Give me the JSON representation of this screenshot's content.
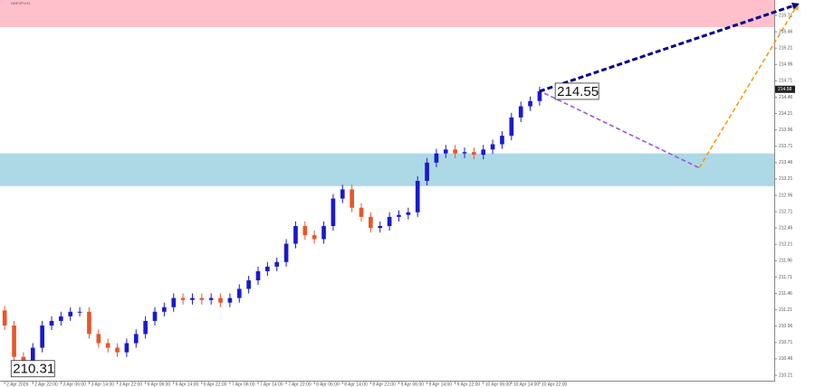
{
  "chart_data": {
    "type": "candlestick",
    "symbol_info": "GBPJPY,H1",
    "ylim": [
      210.03,
      215.945
    ],
    "yticks": [
      210.21,
      210.46,
      210.71,
      210.96,
      211.21,
      211.46,
      211.71,
      211.96,
      212.21,
      212.46,
      212.71,
      212.96,
      213.21,
      213.46,
      213.71,
      213.96,
      214.21,
      214.46,
      214.71,
      214.96,
      215.21,
      215.46,
      215.71
    ],
    "xlim": [
      -0.5,
      82
    ],
    "xticks": [
      {
        "value": 0,
        "label": "2 Apr 2026"
      },
      {
        "value": 3,
        "label": "2 Apr 22:00"
      },
      {
        "value": 6,
        "label": "3 Apr 06:00"
      },
      {
        "value": 9,
        "label": "3 Apr 14:00"
      },
      {
        "value": 12,
        "label": "3 Apr 22:00"
      },
      {
        "value": 15,
        "label": "6 Apr 06:00"
      },
      {
        "value": 18,
        "label": "6 Apr 14:00"
      },
      {
        "value": 21,
        "label": "6 Apr 22:00"
      },
      {
        "value": 24,
        "label": "7 Apr 06:00"
      },
      {
        "value": 27,
        "label": "7 Apr 14:00"
      },
      {
        "value": 30,
        "label": "7 Apr 22:00"
      },
      {
        "value": 33,
        "label": "8 Apr 06:00"
      },
      {
        "value": 36,
        "label": "8 Apr 14:00"
      },
      {
        "value": 39,
        "label": "8 Apr 22:00"
      },
      {
        "value": 42,
        "label": "9 Apr 06:00"
      },
      {
        "value": 45,
        "label": "9 Apr 14:00"
      },
      {
        "value": 48,
        "label": "9 Apr 22:00"
      },
      {
        "value": 51,
        "label": "10 Apr 06:00"
      },
      {
        "value": 54,
        "label": "10 Apr 14:00"
      },
      {
        "value": 57,
        "label": "10 Apr 22:00"
      }
    ],
    "up_color": "#1a1acd",
    "down_color": "#e8552a",
    "x": [
      0,
      1,
      2,
      3,
      4,
      5,
      6,
      7,
      8,
      9,
      10,
      11,
      12,
      13,
      14,
      15,
      16,
      17,
      18,
      19,
      20,
      21,
      22,
      23,
      24,
      25,
      26,
      27,
      28,
      29,
      30,
      31,
      32,
      33,
      34,
      35,
      36,
      37,
      38,
      39,
      40,
      41,
      42,
      43,
      44,
      45,
      46,
      47,
      48,
      49,
      50,
      51,
      52,
      53,
      54,
      55,
      56,
      57
    ],
    "open": [
      211.2,
      210.97,
      210.49,
      210.35,
      210.63,
      210.97,
      211.04,
      211.11,
      211.18,
      211.18,
      210.84,
      210.7,
      210.63,
      210.56,
      210.7,
      210.84,
      211.04,
      211.18,
      211.25,
      211.39,
      211.36,
      211.39,
      211.36,
      211.39,
      211.32,
      211.39,
      211.53,
      211.66,
      211.8,
      211.87,
      211.94,
      212.22,
      212.49,
      212.35,
      212.29,
      212.49,
      212.91,
      213.05,
      212.77,
      212.63,
      212.46,
      212.49,
      212.63,
      212.66,
      212.7,
      213.18,
      213.46,
      213.6,
      213.66,
      213.6,
      213.62,
      213.58,
      213.66,
      213.74,
      213.87,
      214.15,
      214.32,
      214.4
    ],
    "high": [
      211.27,
      211.04,
      210.56,
      210.7,
      211.04,
      211.11,
      211.18,
      211.25,
      211.25,
      211.25,
      210.91,
      210.77,
      210.7,
      210.77,
      210.91,
      211.11,
      211.25,
      211.32,
      211.46,
      211.46,
      211.46,
      211.46,
      211.46,
      211.46,
      211.46,
      211.6,
      211.73,
      211.87,
      211.94,
      212.01,
      212.29,
      212.56,
      212.56,
      212.42,
      212.56,
      212.98,
      213.12,
      213.12,
      212.84,
      212.7,
      212.56,
      212.7,
      212.73,
      212.77,
      213.25,
      213.53,
      213.67,
      213.73,
      213.73,
      213.69,
      213.69,
      213.73,
      213.81,
      213.94,
      214.22,
      214.39,
      214.47,
      214.62
    ],
    "low": [
      210.9,
      210.42,
      210.31,
      210.33,
      210.56,
      210.9,
      210.97,
      211.04,
      211.11,
      210.77,
      210.63,
      210.56,
      210.49,
      210.49,
      210.63,
      210.77,
      210.97,
      211.11,
      211.18,
      211.29,
      211.29,
      211.29,
      211.29,
      211.25,
      211.25,
      211.32,
      211.46,
      211.59,
      211.73,
      211.8,
      211.87,
      212.15,
      212.28,
      212.22,
      212.22,
      212.42,
      212.84,
      212.7,
      212.56,
      212.39,
      212.39,
      212.42,
      212.56,
      212.59,
      212.63,
      213.11,
      213.39,
      213.53,
      213.53,
      213.53,
      213.51,
      213.51,
      213.59,
      213.67,
      213.8,
      214.08,
      214.25,
      214.33
    ],
    "close": [
      210.97,
      210.49,
      210.35,
      210.63,
      210.97,
      211.04,
      211.11,
      211.18,
      211.18,
      210.84,
      210.7,
      210.63,
      210.56,
      210.7,
      210.84,
      211.04,
      211.18,
      211.25,
      211.39,
      211.36,
      211.39,
      211.36,
      211.39,
      211.32,
      211.39,
      211.53,
      211.66,
      211.8,
      211.87,
      211.94,
      212.22,
      212.49,
      212.35,
      212.29,
      212.49,
      212.91,
      213.05,
      212.77,
      212.63,
      212.46,
      212.49,
      212.63,
      212.66,
      212.7,
      213.18,
      213.46,
      213.6,
      213.66,
      213.6,
      213.62,
      213.58,
      213.66,
      213.74,
      213.87,
      214.15,
      214.32,
      214.4,
      214.55
    ],
    "zones": [
      {
        "from": 215.53,
        "to": 215.945,
        "color": "#ffc0cb"
      },
      {
        "from": 213.1,
        "to": 213.6,
        "color": "#add8e6"
      }
    ],
    "forecast": [
      {
        "color": "#9b59d0",
        "x": [
          57.5,
          74
        ],
        "y": [
          214.52,
          213.38
        ]
      },
      {
        "color": "#f39c12",
        "x": [
          74,
          84.5
        ],
        "y": [
          213.38,
          215.88
        ]
      },
      {
        "color": "#00008b",
        "x": [
          57,
          84.5
        ],
        "y": [
          214.55,
          215.88
        ]
      }
    ],
    "price_labels": [
      {
        "x": 57.7,
        "value": 214.55
      },
      {
        "x": 0.3,
        "value": 210.31
      }
    ],
    "current_price": 214.58
  }
}
